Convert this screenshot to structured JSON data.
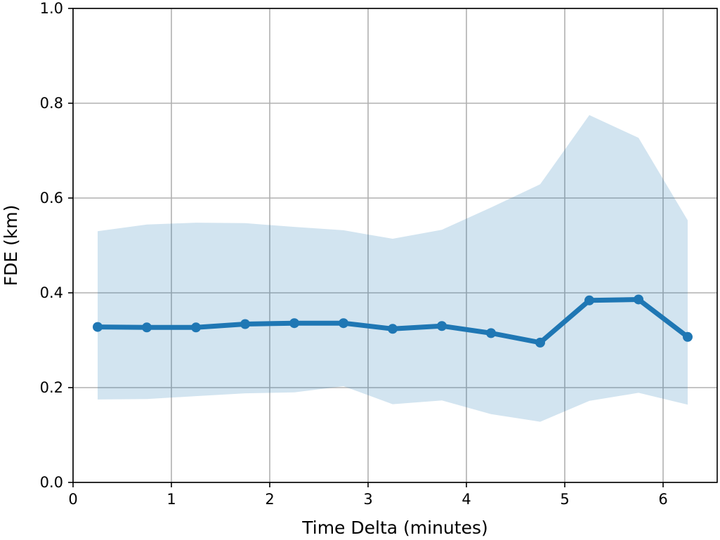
{
  "chart_data": {
    "type": "line",
    "title": "",
    "xlabel": "Time Delta (minutes)",
    "ylabel": "FDE (km)",
    "xlim": [
      0,
      6.55
    ],
    "ylim": [
      0,
      1.0
    ],
    "x_ticks": [
      0,
      1,
      2,
      3,
      4,
      5,
      6
    ],
    "x_tick_labels": [
      "0",
      "1",
      "2",
      "3",
      "4",
      "5",
      "6"
    ],
    "y_ticks": [
      0.0,
      0.2,
      0.4,
      0.6,
      0.8,
      1.0
    ],
    "y_tick_labels": [
      "0.0",
      "0.2",
      "0.4",
      "0.6",
      "0.8",
      "1.0"
    ],
    "grid": true,
    "x": [
      0.25,
      0.75,
      1.25,
      1.75,
      2.25,
      2.75,
      3.25,
      3.75,
      4.25,
      4.75,
      5.25,
      5.75,
      6.25
    ],
    "series": [
      {
        "values": [
          0.328,
          0.327,
          0.327,
          0.334,
          0.336,
          0.336,
          0.324,
          0.33,
          0.315,
          0.295,
          0.384,
          0.386,
          0.307
        ],
        "color": "#1f77b4",
        "marker": "circle"
      }
    ],
    "band": {
      "lower": [
        0.175,
        0.176,
        0.182,
        0.188,
        0.19,
        0.203,
        0.165,
        0.173,
        0.144,
        0.128,
        0.172,
        0.189,
        0.164
      ],
      "upper": [
        0.53,
        0.544,
        0.548,
        0.547,
        0.539,
        0.532,
        0.514,
        0.533,
        0.58,
        0.629,
        0.775,
        0.727,
        0.553
      ],
      "color": "#1f77b4",
      "opacity": 0.2
    }
  }
}
